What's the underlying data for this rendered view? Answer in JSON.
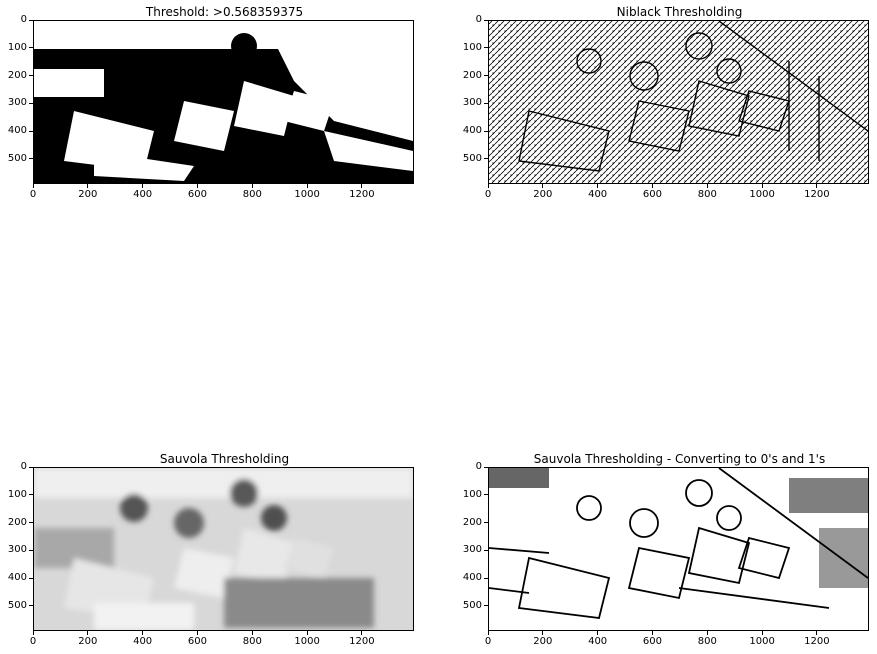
{
  "panels": [
    {
      "title": "Threshold: >0.568359375",
      "style": "binary"
    },
    {
      "title": "Niblack Thresholding",
      "style": "niblack"
    },
    {
      "title": "Sauvola Thresholding",
      "style": "sauvola"
    },
    {
      "title": "Sauvola Thresholding - Converting to 0's and 1's",
      "style": "sauvola-binary"
    }
  ],
  "chart_data": [
    {
      "type": "image",
      "title": "Threshold: >0.568359375",
      "x_ticks": [
        0,
        200,
        400,
        600,
        800,
        1000,
        1200
      ],
      "y_ticks": [
        0,
        100,
        200,
        300,
        400,
        500
      ],
      "xlim": [
        0,
        1390
      ],
      "ylim": [
        590,
        0
      ],
      "colormap": "gray"
    },
    {
      "type": "image",
      "title": "Niblack Thresholding",
      "x_ticks": [
        0,
        200,
        400,
        600,
        800,
        1000,
        1200
      ],
      "y_ticks": [
        0,
        100,
        200,
        300,
        400,
        500
      ],
      "xlim": [
        0,
        1390
      ],
      "ylim": [
        590,
        0
      ],
      "colormap": "gray"
    },
    {
      "type": "image",
      "title": "Sauvola Thresholding",
      "x_ticks": [
        0,
        200,
        400,
        600,
        800,
        1000,
        1200
      ],
      "y_ticks": [
        0,
        100,
        200,
        300,
        400,
        500
      ],
      "xlim": [
        0,
        1390
      ],
      "ylim": [
        590,
        0
      ],
      "colormap": "gray"
    },
    {
      "type": "image",
      "title": "Sauvola Thresholding - Converting to 0's and 1's",
      "x_ticks": [
        0,
        200,
        400,
        600,
        800,
        1000,
        1200
      ],
      "y_ticks": [
        0,
        100,
        200,
        300,
        400,
        500
      ],
      "xlim": [
        0,
        1390
      ],
      "ylim": [
        590,
        0
      ],
      "colormap": "gray"
    }
  ]
}
